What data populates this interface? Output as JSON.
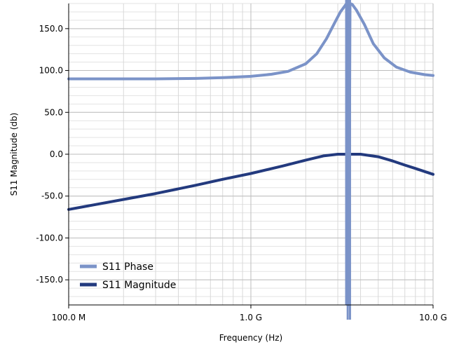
{
  "chart_data": {
    "type": "line",
    "xlabel": "Frequency (Hz)",
    "ylabel": "S11 Magnitude (db)",
    "x_scale": "log",
    "xlim": [
      100000000,
      10000000000
    ],
    "ylim": [
      -180,
      180
    ],
    "x_ticks": [
      {
        "value": 100000000,
        "label": "100.0 M"
      },
      {
        "value": 1000000000,
        "label": "1.0 G"
      },
      {
        "value": 10000000000,
        "label": "10.0 G"
      }
    ],
    "y_ticks": [
      {
        "value": 150,
        "label": "150.0"
      },
      {
        "value": 100,
        "label": "100.0"
      },
      {
        "value": 50,
        "label": "50.0"
      },
      {
        "value": 0,
        "label": "0.0"
      },
      {
        "value": -50,
        "label": "-50.0"
      },
      {
        "value": -100,
        "label": "-100.0"
      },
      {
        "value": -150,
        "label": "-150.0"
      }
    ],
    "grid": true,
    "legend_position": "bottom-left",
    "series": [
      {
        "name": "S11 Phase",
        "color": "#7b93c8",
        "x": [
          100000000,
          200000000,
          300000000,
          500000000,
          700000000,
          1000000000,
          1300000000,
          1600000000,
          2000000000,
          2300000000,
          2600000000,
          2900000000,
          3100000000,
          3300000000,
          3350000000,
          3400000000,
          3450000000,
          3500000000,
          3600000000,
          3800000000,
          4200000000,
          4700000000,
          5400000000,
          6300000000,
          7500000000,
          9000000000,
          10000000000
        ],
        "values": [
          90,
          90,
          90,
          90.5,
          91.5,
          93,
          95.5,
          99,
          108,
          120,
          138,
          158,
          170,
          178,
          180,
          -180,
          -180,
          180,
          179,
          172,
          155,
          132,
          115,
          104,
          98,
          95,
          94
        ]
      },
      {
        "name": "S11 Magnitude",
        "color": "#233a7e",
        "x": [
          100000000,
          200000000,
          300000000,
          500000000,
          700000000,
          1000000000,
          1500000000,
          2000000000,
          2500000000,
          3000000000,
          3500000000,
          4000000000,
          5000000000,
          6000000000,
          7000000000,
          8000000000,
          10000000000
        ],
        "values": [
          -66,
          -54,
          -47,
          -37,
          -30,
          -23,
          -14,
          -7,
          -2,
          0,
          0,
          0,
          -3,
          -8,
          -13,
          -17,
          -24
        ]
      }
    ]
  }
}
